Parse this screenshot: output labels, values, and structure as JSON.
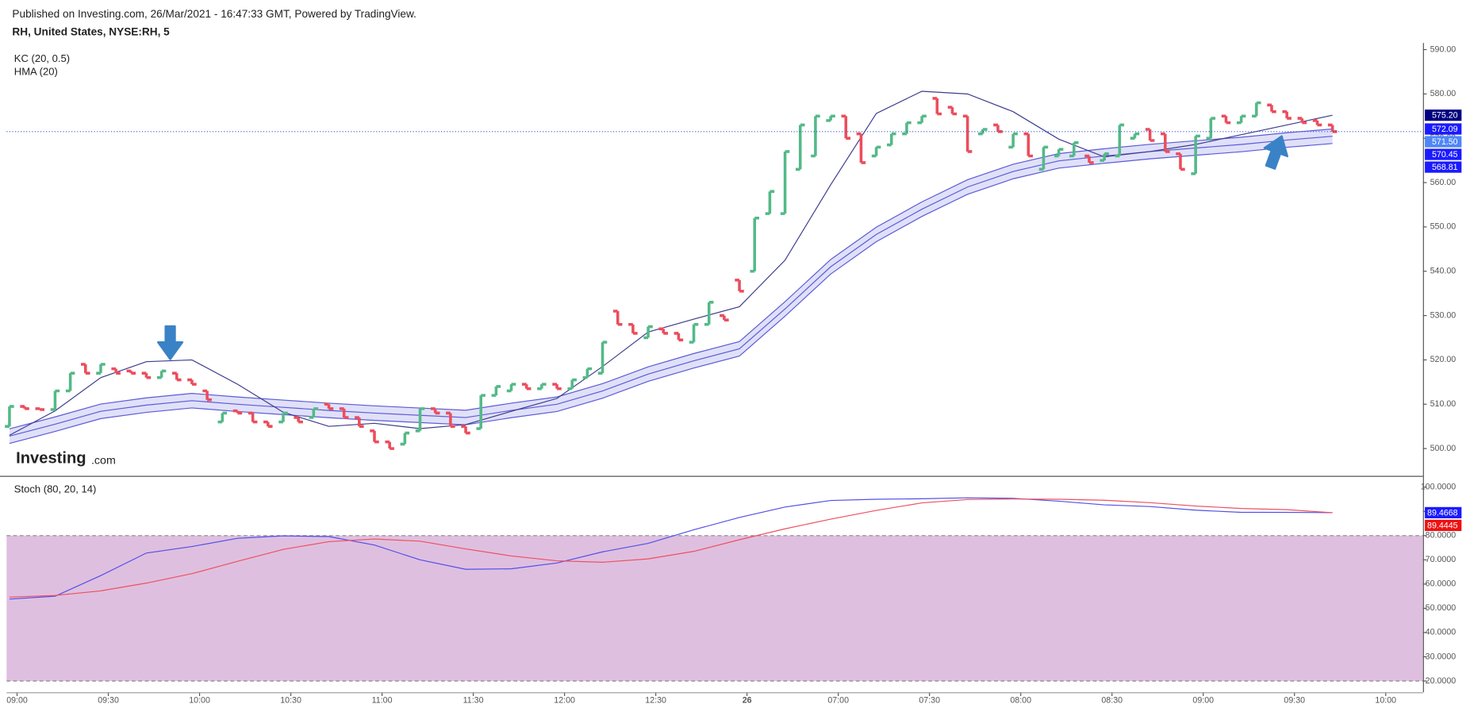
{
  "header": {
    "published": "Published on Investing.com, 26/Mar/2021 - 16:47:33 GMT, Powered by TradingView.",
    "symbol": "RH, United States, NYSE:RH, 5"
  },
  "logo": {
    "brand": "Investing",
    "suffix": ".com"
  },
  "chart_data": [
    {
      "type": "candlestick",
      "xlim": [
        -0.19,
        92.95
      ],
      "xticks": [
        {
          "value": 0.5,
          "label": "09:00"
        },
        {
          "value": 6.5,
          "label": "09:30"
        },
        {
          "value": 12.5,
          "label": "10:00"
        },
        {
          "value": 18.5,
          "label": "10:30"
        },
        {
          "value": 24.5,
          "label": "11:00"
        },
        {
          "value": 30.5,
          "label": "11:30"
        },
        {
          "value": 36.5,
          "label": "12:00"
        },
        {
          "value": 42.5,
          "label": "12:30"
        },
        {
          "value": 48.5,
          "label": "26"
        },
        {
          "value": 54.5,
          "label": "07:00"
        },
        {
          "value": 60.5,
          "label": "07:30"
        },
        {
          "value": 66.5,
          "label": "08:00"
        },
        {
          "value": 72.5,
          "label": "08:30"
        },
        {
          "value": 78.5,
          "label": "09:00"
        },
        {
          "value": 84.5,
          "label": "09:30"
        },
        {
          "value": 90.5,
          "label": "10:00"
        }
      ],
      "ylim": [
        493.84,
        591.49
      ],
      "yticks": [
        {
          "value": 500,
          "label": "500.00"
        },
        {
          "value": 510,
          "label": "510.00"
        },
        {
          "value": 520,
          "label": "520.00"
        },
        {
          "value": 530,
          "label": "530.00"
        },
        {
          "value": 540,
          "label": "540.00"
        },
        {
          "value": 550,
          "label": "550.00"
        },
        {
          "value": 560,
          "label": "560.00"
        },
        {
          "value": 570,
          "label": "570.00"
        },
        {
          "value": 580,
          "label": "580.00"
        },
        {
          "value": 590,
          "label": "590.00"
        }
      ],
      "up_color": "#53b987",
      "down_color": "#eb4d5c",
      "open": [
        505,
        509.5,
        509,
        508.8,
        513,
        519,
        517,
        518,
        517.5,
        517,
        516,
        517,
        515.5,
        513,
        506,
        508.5,
        508,
        506,
        506,
        507,
        507,
        510,
        509,
        507,
        504,
        501.5,
        501,
        504,
        509,
        508,
        505,
        504.5,
        512,
        513,
        514.5,
        513.5,
        514.5,
        513.5,
        516,
        517,
        531,
        528,
        525,
        527,
        526,
        524,
        528,
        530,
        538,
        540,
        553,
        553,
        563,
        566,
        574,
        575,
        571,
        566,
        568.5,
        571,
        573.5,
        579,
        577,
        575,
        571,
        573,
        568,
        571,
        563,
        566,
        566,
        566,
        565,
        566,
        570,
        572,
        571,
        566.5,
        562,
        570,
        575,
        573.5,
        575,
        577.5,
        576,
        574.5,
        574,
        573
      ],
      "close": [
        509.5,
        509,
        508.8,
        513,
        517,
        517,
        519,
        517,
        517,
        516,
        517.5,
        515.5,
        514.5,
        511,
        508,
        508,
        506,
        505,
        508,
        506,
        509,
        509,
        507,
        505,
        501.5,
        500,
        503.5,
        509,
        508,
        505,
        503.5,
        512,
        514,
        514.5,
        513.5,
        514.5,
        513.5,
        515.5,
        518,
        524,
        528,
        526,
        527.5,
        526,
        524.5,
        528,
        533,
        529,
        535.5,
        552,
        558,
        567,
        573,
        575,
        575,
        570,
        564.5,
        568,
        571,
        573.5,
        575,
        575.5,
        575.5,
        567,
        572,
        571.5,
        571,
        566,
        568,
        567.5,
        569,
        564.5,
        566.5,
        573,
        571,
        569.5,
        567,
        563,
        570.5,
        574.5,
        573.5,
        575,
        578,
        576,
        574.5,
        573.5,
        573,
        571.5
      ],
      "last_price_line": true,
      "last_price_color": "#2f5bd8",
      "indicators": [
        {
          "name": "KC (20, 0.5)",
          "color": "#5b5bd6",
          "fill": "#d8d8f8",
          "x": [
            0,
            3,
            6,
            9,
            12,
            15,
            18,
            21,
            24,
            27,
            30,
            33,
            36,
            39,
            42,
            45,
            48,
            51,
            54,
            57,
            60,
            63,
            66,
            69,
            72,
            75,
            78,
            81,
            84,
            87
          ],
          "upper": [
            504.44,
            507.14,
            510.04,
            511.44,
            512.44,
            511.64,
            510.94,
            510.24,
            509.64,
            509.14,
            508.64,
            510.24,
            511.64,
            514.64,
            518.44,
            521.44,
            524.14,
            533.14,
            542.64,
            549.94,
            555.64,
            560.64,
            564.14,
            566.54,
            567.64,
            568.64,
            569.44,
            570.24,
            571.24,
            572.09
          ],
          "middle": [
            502.8,
            505.5,
            508.4,
            509.8,
            510.8,
            510,
            509.3,
            508.6,
            508,
            507.5,
            507,
            508.6,
            510,
            513,
            516.8,
            519.8,
            522.5,
            531.5,
            541,
            548.3,
            554,
            559,
            562.5,
            564.9,
            566,
            567,
            567.8,
            568.6,
            569.6,
            570.45
          ],
          "lower": [
            501.16,
            503.86,
            506.76,
            508.16,
            509.16,
            508.36,
            507.66,
            506.96,
            506.36,
            505.86,
            505.36,
            506.96,
            508.36,
            511.36,
            515.16,
            518.16,
            520.86,
            529.86,
            539.36,
            546.66,
            552.36,
            557.36,
            560.86,
            563.26,
            564.36,
            565.36,
            566.16,
            566.96,
            567.96,
            568.81
          ]
        },
        {
          "name": "HMA (20)",
          "color": "#3c3c8c",
          "x": [
            0,
            3,
            6,
            9,
            12,
            15,
            18,
            21,
            24,
            27,
            30,
            33,
            36,
            39,
            42,
            45,
            48,
            51,
            54,
            57,
            60,
            63,
            66,
            69,
            72,
            75,
            78,
            81,
            84,
            87
          ],
          "values": [
            503,
            508.5,
            516,
            519.6,
            520,
            514.5,
            508.2,
            505,
            505.7,
            504.5,
            505.4,
            508.4,
            511.3,
            518.5,
            526.3,
            529.2,
            532,
            542.5,
            559.5,
            575.6,
            580.6,
            580,
            576,
            569.8,
            565.8,
            567,
            568.6,
            570.8,
            573,
            575.2
          ]
        }
      ],
      "price_labels": [
        {
          "value": 575.2,
          "label": "575.20",
          "color": "#000080"
        },
        {
          "value": 572.09,
          "label": "572.09",
          "color": "#1a1aff"
        },
        {
          "value": 571.5,
          "label": "571.50",
          "color": "#4f86f7"
        },
        {
          "value": 570.45,
          "label": "570.45",
          "color": "#1a1aff"
        },
        {
          "value": 568.81,
          "label": "568.81",
          "color": "#1a1aff"
        }
      ]
    },
    {
      "type": "line",
      "title": "Stoch (80, 20, 14)",
      "xlim": [
        -0.19,
        92.95
      ],
      "ylim": [
        15.34,
        103.88
      ],
      "yticks": [
        {
          "value": 20,
          "label": "20.0000"
        },
        {
          "value": 30,
          "label": "30.0000"
        },
        {
          "value": 40,
          "label": "40.0000"
        },
        {
          "value": 50,
          "label": "50.0000"
        },
        {
          "value": 60,
          "label": "60.0000"
        },
        {
          "value": 70,
          "label": "70.0000"
        },
        {
          "value": 80,
          "label": "80.0000"
        },
        {
          "value": 90,
          "label": "90.0000"
        },
        {
          "value": 100,
          "label": "100.0000"
        }
      ],
      "band": {
        "from": 20,
        "to": 80,
        "color": "#dfbfdf"
      },
      "series": [
        {
          "color": "#5050e8",
          "x": [
            0,
            3,
            6,
            9,
            12,
            15,
            18,
            21,
            24,
            27,
            30,
            33,
            36,
            39,
            42,
            45,
            48,
            51,
            54,
            57,
            60,
            63,
            66,
            69,
            72,
            75,
            78,
            81,
            84,
            87
          ],
          "values": [
            53.8,
            55,
            63.5,
            72.8,
            75.5,
            78.9,
            79.9,
            79.6,
            76.1,
            70,
            66.1,
            66.3,
            68.7,
            73.3,
            76.8,
            82.4,
            87.5,
            91.8,
            94.5,
            95,
            95.2,
            95.6,
            95.4,
            94.2,
            92.7,
            92,
            90.5,
            89.6,
            89.6,
            89.4668
          ]
        },
        {
          "color": "#ee5060",
          "x": [
            0,
            3,
            6,
            9,
            12,
            15,
            18,
            21,
            24,
            27,
            30,
            33,
            36,
            39,
            42,
            45,
            48,
            51,
            54,
            57,
            60,
            63,
            66,
            69,
            72,
            75,
            78,
            81,
            84,
            87
          ],
          "values": [
            54.6,
            55.3,
            57.2,
            60.4,
            64.3,
            69.4,
            74.3,
            77.5,
            78.6,
            77.7,
            74.5,
            71.6,
            69.6,
            69,
            70.4,
            73.5,
            78.3,
            82.8,
            86.8,
            90.4,
            93.5,
            94.9,
            95.1,
            95,
            94.6,
            93.6,
            92.2,
            91.2,
            90.7,
            89.4445
          ]
        }
      ],
      "price_labels": [
        {
          "value": 89.4668,
          "label": "89.4668",
          "color": "#1a1aff"
        },
        {
          "value": 89.4445,
          "label": "89.4445",
          "color": "#ee1111"
        }
      ]
    }
  ]
}
